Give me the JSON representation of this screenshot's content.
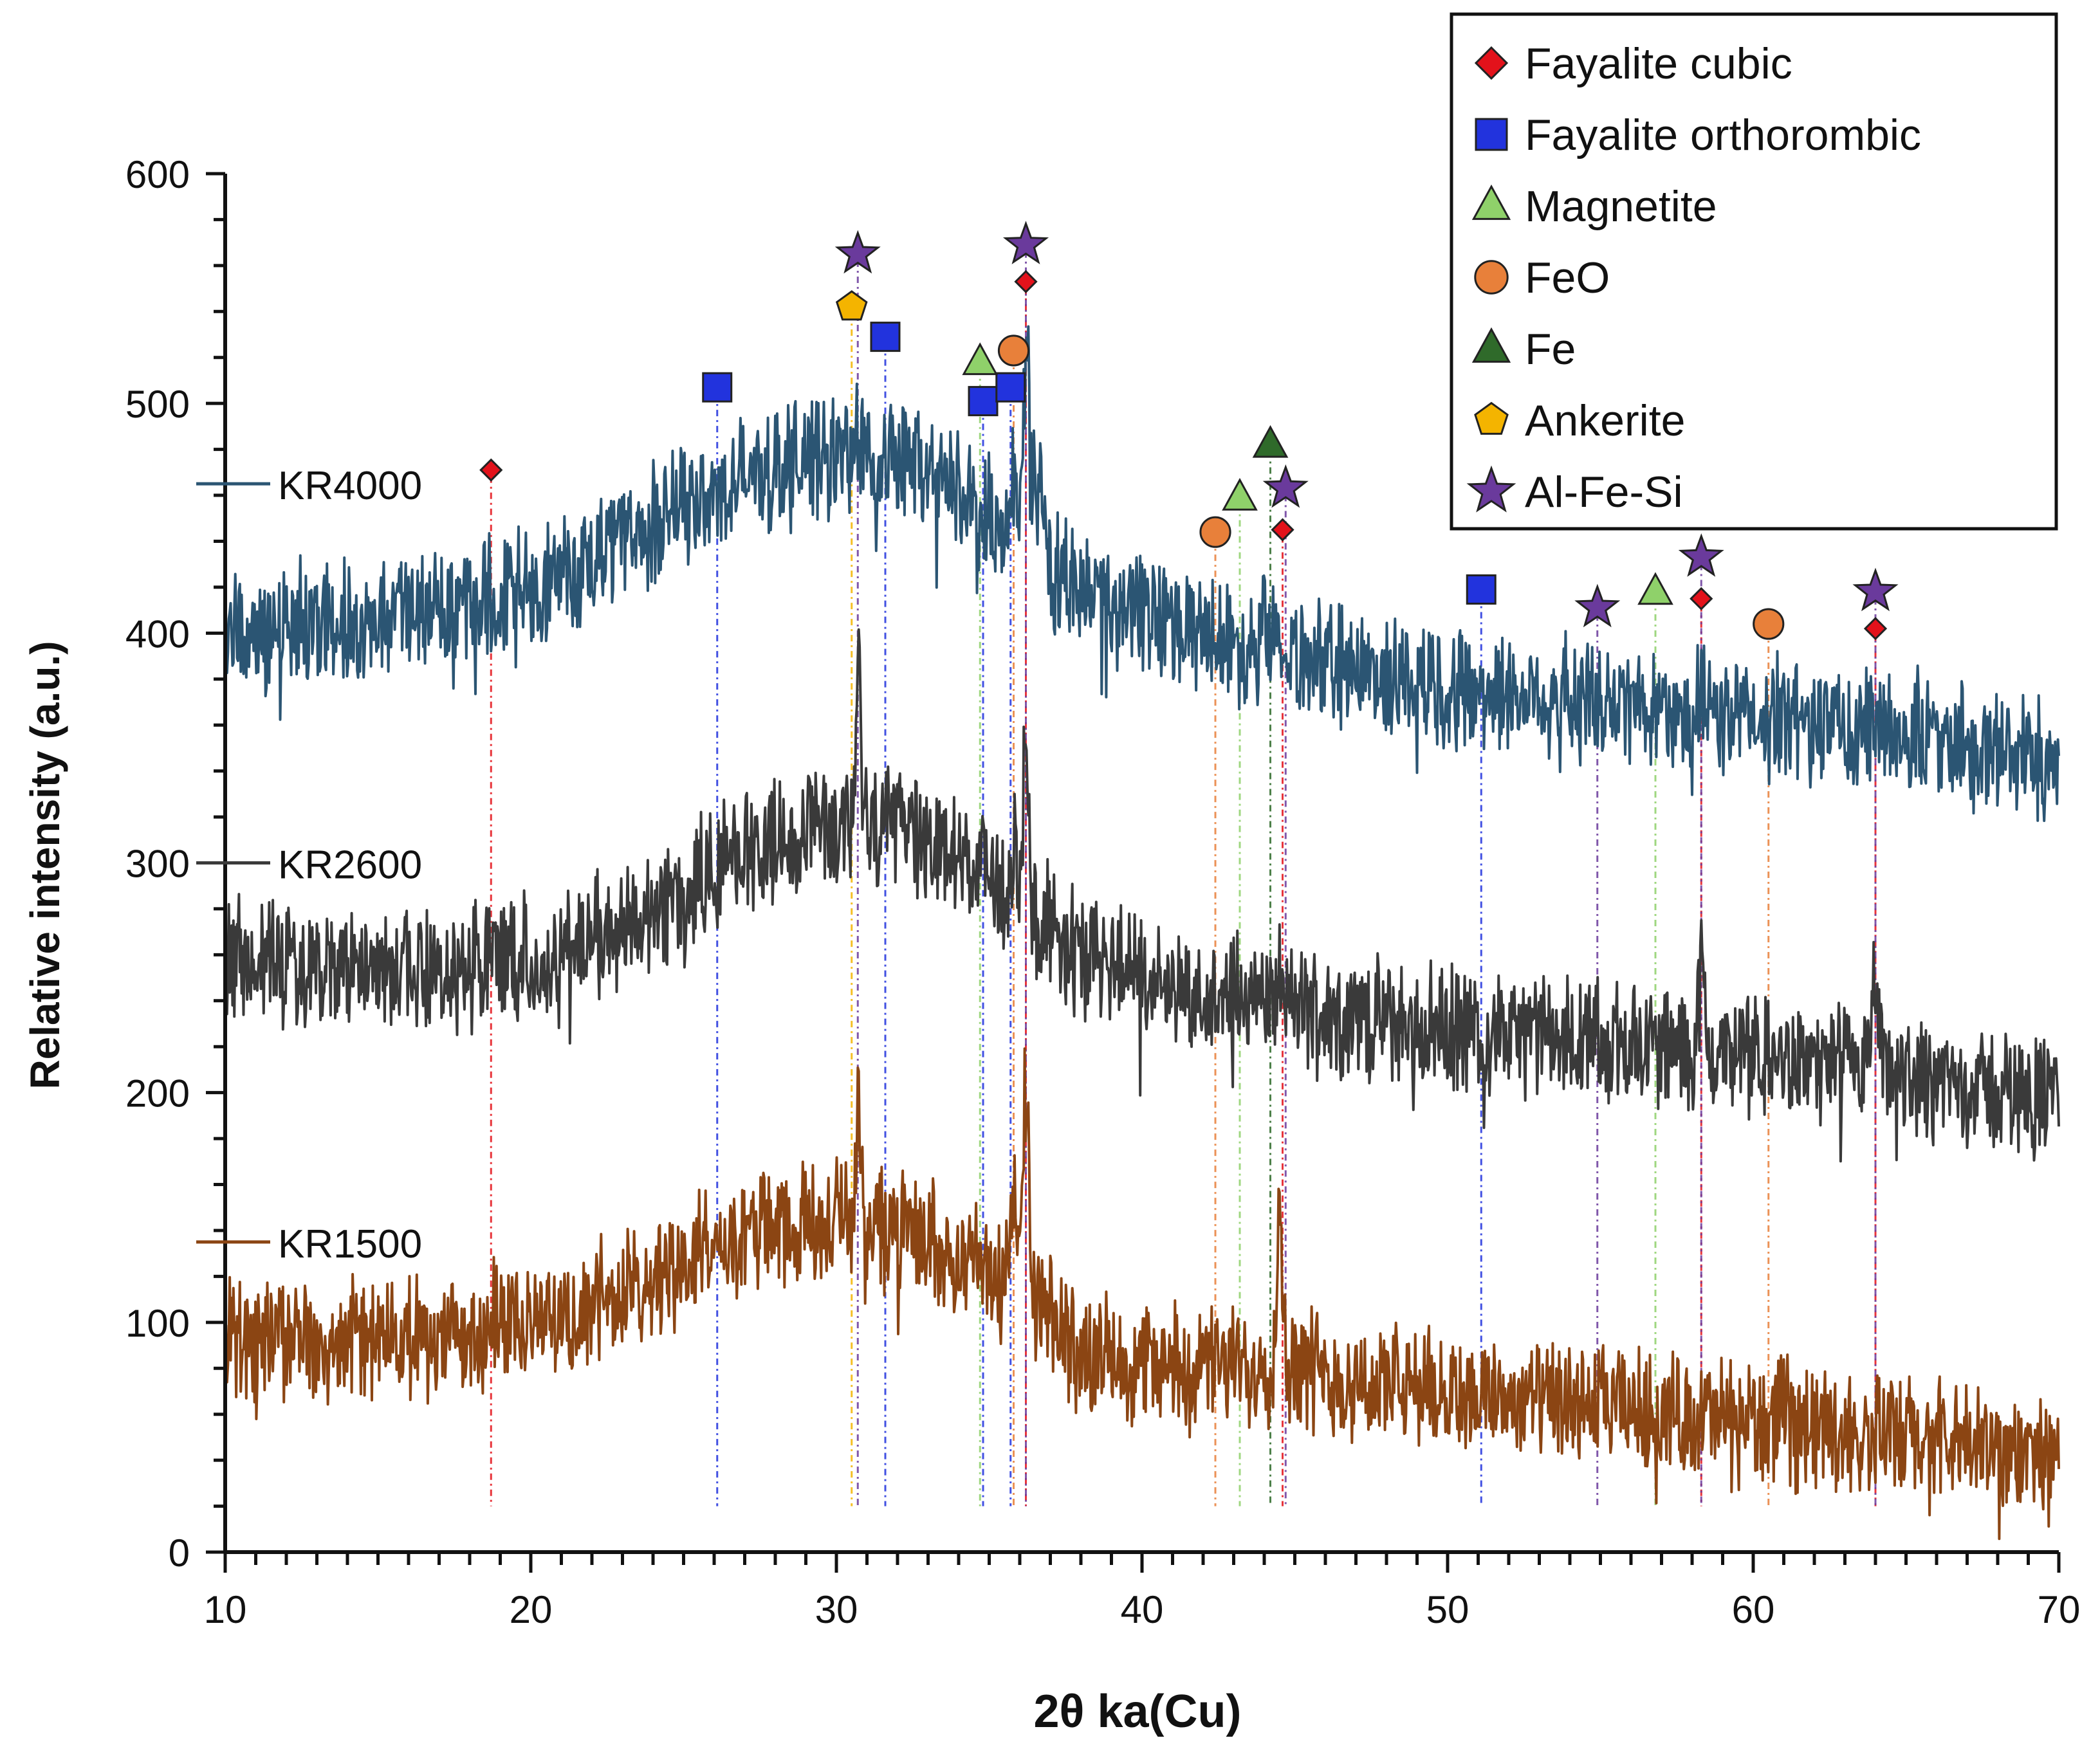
{
  "chart_data": {
    "type": "line",
    "title": "",
    "xlabel": "2θ ka(Cu)",
    "ylabel": "Relative intensity (a.u.)",
    "xlim": [
      10,
      70
    ],
    "ylim": [
      0,
      600
    ],
    "x_ticks": [
      10,
      20,
      30,
      40,
      50,
      60,
      70
    ],
    "y_ticks": [
      0,
      100,
      200,
      300,
      400,
      500,
      600
    ],
    "grid": false,
    "legend_position": "top-right",
    "series": [
      {
        "name": "KR4000",
        "color": "#2b5573",
        "label_y": 465,
        "points": [
          [
            10,
            402
          ],
          [
            12,
            403
          ],
          [
            14,
            405
          ],
          [
            16,
            408
          ],
          [
            18,
            412
          ],
          [
            20,
            420
          ],
          [
            22,
            432
          ],
          [
            24,
            446
          ],
          [
            26,
            460
          ],
          [
            28,
            472
          ],
          [
            30,
            478
          ],
          [
            31,
            480
          ],
          [
            32,
            476
          ],
          [
            33,
            470
          ],
          [
            34,
            460
          ],
          [
            35,
            450
          ],
          [
            36,
            445
          ],
          [
            36.3,
            480
          ],
          [
            37,
            430
          ],
          [
            38,
            418
          ],
          [
            40,
            408
          ],
          [
            42,
            400
          ],
          [
            44,
            393
          ],
          [
            46,
            387
          ],
          [
            48,
            382
          ],
          [
            50,
            378
          ],
          [
            52,
            374
          ],
          [
            54,
            371
          ],
          [
            56,
            369
          ],
          [
            58,
            366
          ],
          [
            60,
            363
          ],
          [
            62,
            361
          ],
          [
            64,
            358
          ],
          [
            66,
            355
          ],
          [
            68,
            350
          ],
          [
            70,
            345
          ]
        ],
        "peaks": [
          [
            30.7,
            490
          ],
          [
            36.2,
            530
          ],
          [
            35.8,
            470
          ],
          [
            44.5,
            410
          ],
          [
            44.0,
            420
          ],
          [
            31.3,
            460
          ]
        ]
      },
      {
        "name": "KR2600",
        "color": "#3a3a3a",
        "label_y": 300,
        "points": [
          [
            10,
            258
          ],
          [
            12,
            256
          ],
          [
            14,
            254
          ],
          [
            16,
            253
          ],
          [
            18,
            254
          ],
          [
            20,
            258
          ],
          [
            22,
            266
          ],
          [
            24,
            280
          ],
          [
            26,
            296
          ],
          [
            28,
            310
          ],
          [
            30,
            316
          ],
          [
            31,
            318
          ],
          [
            32,
            315
          ],
          [
            33,
            310
          ],
          [
            34,
            302
          ],
          [
            35,
            292
          ],
          [
            36,
            285
          ],
          [
            37,
            270
          ],
          [
            38,
            258
          ],
          [
            40,
            250
          ],
          [
            42,
            245
          ],
          [
            44,
            240
          ],
          [
            46,
            235
          ],
          [
            48,
            231
          ],
          [
            50,
            228
          ],
          [
            52,
            225
          ],
          [
            54,
            223
          ],
          [
            56,
            221
          ],
          [
            58,
            218
          ],
          [
            60,
            215
          ],
          [
            62,
            212
          ],
          [
            64,
            209
          ],
          [
            66,
            205
          ],
          [
            68,
            201
          ],
          [
            70,
            197
          ]
        ],
        "peaks": [
          [
            30.7,
            380
          ],
          [
            36.2,
            360
          ],
          [
            35.8,
            305
          ],
          [
            44.5,
            250
          ],
          [
            58.3,
            255
          ],
          [
            64,
            250
          ]
        ]
      },
      {
        "name": "KR1500",
        "color": "#8b4513",
        "label_y": 135,
        "points": [
          [
            10,
            90
          ],
          [
            12,
            92
          ],
          [
            14,
            92
          ],
          [
            16,
            93
          ],
          [
            18,
            96
          ],
          [
            20,
            100
          ],
          [
            22,
            108
          ],
          [
            24,
            120
          ],
          [
            26,
            133
          ],
          [
            28,
            142
          ],
          [
            30,
            145
          ],
          [
            31,
            143
          ],
          [
            32,
            140
          ],
          [
            33,
            136
          ],
          [
            34,
            130
          ],
          [
            35,
            124
          ],
          [
            36,
            120
          ],
          [
            37,
            100
          ],
          [
            38,
            88
          ],
          [
            40,
            82
          ],
          [
            42,
            80
          ],
          [
            44,
            82
          ],
          [
            45,
            85
          ],
          [
            46,
            76
          ],
          [
            48,
            72
          ],
          [
            50,
            70
          ],
          [
            52,
            67
          ],
          [
            54,
            64
          ],
          [
            56,
            62
          ],
          [
            58,
            59
          ],
          [
            60,
            57
          ],
          [
            62,
            55
          ],
          [
            64,
            52
          ],
          [
            66,
            48
          ],
          [
            68,
            45
          ],
          [
            70,
            41
          ]
        ],
        "peaks": [
          [
            30.7,
            190
          ],
          [
            36.2,
            205
          ],
          [
            35.8,
            150
          ],
          [
            44.5,
            150
          ]
        ]
      }
    ],
    "legend": [
      {
        "label": "Fayalite cubic",
        "marker": "diamond",
        "color": "#e3121b"
      },
      {
        "label": "Fayalite orthorombic",
        "marker": "square",
        "color": "#2233dd"
      },
      {
        "label": "Magnetite",
        "marker": "triangle",
        "color": "#8fd16a"
      },
      {
        "label": "FeO",
        "marker": "circle",
        "color": "#e8803a"
      },
      {
        "label": "Fe",
        "marker": "triangle",
        "color": "#2f6a2a"
      },
      {
        "label": "Ankerite",
        "marker": "pentagon",
        "color": "#f4b400"
      },
      {
        "label": "Al-Fe-Si",
        "marker": "star",
        "color": "#6a3a9c"
      }
    ],
    "phase_markers": [
      {
        "phase": "Fayalite cubic",
        "x": 18.7,
        "y": 471
      },
      {
        "phase": "Fayalite cubic",
        "x": 36.2,
        "y": 553
      },
      {
        "phase": "Fayalite cubic",
        "x": 44.6,
        "y": 445
      },
      {
        "phase": "Fayalite cubic",
        "x": 58.3,
        "y": 415
      },
      {
        "phase": "Fayalite cubic",
        "x": 64,
        "y": 402
      },
      {
        "phase": "Fayalite orthorombic",
        "x": 26.1,
        "y": 507
      },
      {
        "phase": "Fayalite orthorombic",
        "x": 31.6,
        "y": 529
      },
      {
        "phase": "Fayalite orthorombic",
        "x": 34.8,
        "y": 501
      },
      {
        "phase": "Fayalite orthorombic",
        "x": 35.7,
        "y": 507
      },
      {
        "phase": "Fayalite orthorombic",
        "x": 51.1,
        "y": 419
      },
      {
        "phase": "Magnetite",
        "x": 34.7,
        "y": 518
      },
      {
        "phase": "Magnetite",
        "x": 43.2,
        "y": 459
      },
      {
        "phase": "Magnetite",
        "x": 56.8,
        "y": 418
      },
      {
        "phase": "FeO",
        "x": 35.8,
        "y": 523
      },
      {
        "phase": "FeO",
        "x": 42.4,
        "y": 444
      },
      {
        "phase": "FeO",
        "x": 60.5,
        "y": 404
      },
      {
        "phase": "Fe",
        "x": 44.2,
        "y": 482
      },
      {
        "phase": "Ankerite",
        "x": 30.5,
        "y": 542
      },
      {
        "phase": "Al-Fe-Si",
        "x": 30.7,
        "y": 565
      },
      {
        "phase": "Al-Fe-Si",
        "x": 36.2,
        "y": 569
      },
      {
        "phase": "Al-Fe-Si",
        "x": 44.7,
        "y": 463
      },
      {
        "phase": "Al-Fe-Si",
        "x": 54.9,
        "y": 411
      },
      {
        "phase": "Al-Fe-Si",
        "x": 58.3,
        "y": 433
      },
      {
        "phase": "Al-Fe-Si",
        "x": 64,
        "y": 418
      }
    ]
  }
}
